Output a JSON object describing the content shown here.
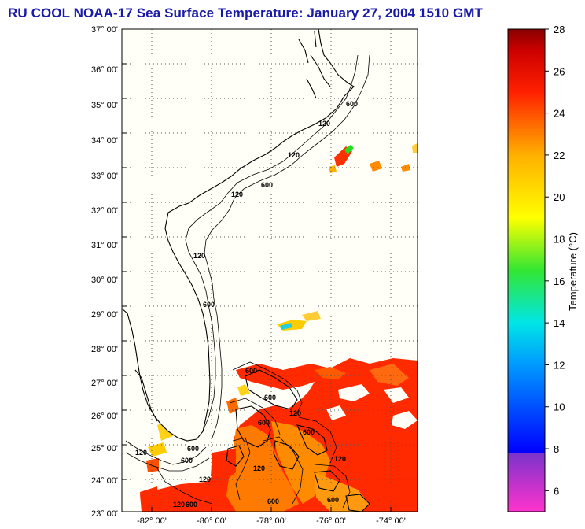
{
  "title": "RU COOL  NOAA-17  Sea Surface Temperature:  January 27, 2004 1510 GMT",
  "map": {
    "lat_labels": [
      "37° 00'",
      "36° 00'",
      "35° 00'",
      "34° 00'",
      "33° 00'",
      "32° 00'",
      "31° 00'",
      "30° 00'",
      "29° 00'",
      "28° 00'",
      "27° 00'",
      "26° 00'",
      "25° 00'",
      "24° 00'",
      "23° 00'"
    ],
    "lon_labels": [
      "-82° 00'",
      "-80° 00'",
      "-78° 00'",
      "-76° 00'",
      "-74° 00'"
    ],
    "isobath_labels": [
      "600",
      "120",
      "120",
      "600",
      "120",
      "600",
      "120",
      "600",
      "600",
      "120",
      "600",
      "600",
      "120",
      "600",
      "120",
      "600",
      "120",
      "600",
      "120",
      "600",
      "120",
      "600"
    ]
  },
  "colorbar": {
    "label": "Temperature (°C)",
    "ticks": [
      "28",
      "26",
      "24",
      "22",
      "20",
      "18",
      "16",
      "14",
      "12",
      "10",
      "8",
      "6"
    ],
    "range": [
      5,
      28
    ],
    "stops": [
      {
        "t": 5,
        "color": "#ff33cc"
      },
      {
        "t": 7.8,
        "color": "#7a33cc"
      },
      {
        "t": 7.8,
        "color": "#0000ff"
      },
      {
        "t": 12,
        "color": "#0099ff"
      },
      {
        "t": 14,
        "color": "#00e6e6"
      },
      {
        "t": 16.5,
        "color": "#33e633"
      },
      {
        "t": 19,
        "color": "#ffff00"
      },
      {
        "t": 22,
        "color": "#ffb000"
      },
      {
        "t": 25,
        "color": "#ff2000"
      },
      {
        "t": 27,
        "color": "#cc0000"
      },
      {
        "t": 28,
        "color": "#880000"
      }
    ]
  }
}
